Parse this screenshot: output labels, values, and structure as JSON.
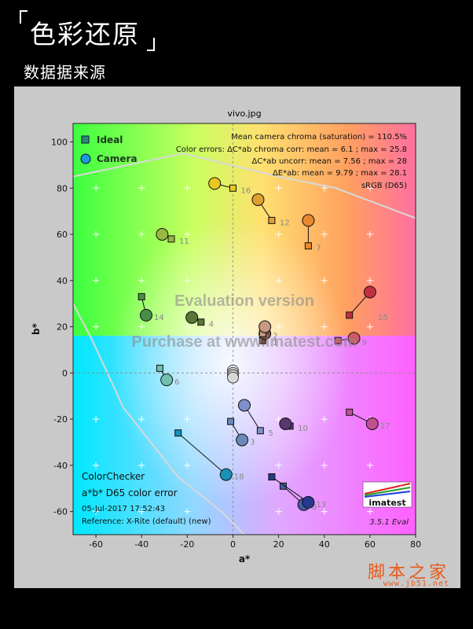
{
  "header": {
    "title": "色彩还原",
    "subtitle": "数据据来源"
  },
  "chart_data": {
    "type": "scatter",
    "title": "vivo.jpg",
    "xlabel": "a*",
    "ylabel": "b*",
    "xlim": [
      -70,
      80
    ],
    "ylim": [
      -70,
      108
    ],
    "xticks": [
      -60,
      -40,
      -20,
      0,
      20,
      40,
      60,
      80
    ],
    "yticks": [
      -60,
      -40,
      -20,
      0,
      20,
      40,
      60,
      80,
      100
    ],
    "grid": false,
    "legend": {
      "placement": "top-left",
      "ideal_label": "Ideal",
      "camera_label": "Camera"
    },
    "stats_lines": [
      "Mean camera chroma (saturation) = 110.5%",
      "Color errors: ΔC*ab chroma corr:  mean = 6.1 ;  max = 25.8",
      "ΔC*ab uncorr:  mean = 7.56 ;  max = 28",
      "ΔE*ab:  mean = 9.79 ;  max = 28.1",
      "sRGB (D65)"
    ],
    "bottom_left_info": [
      "ColorChecker",
      "a*b* D65 color error",
      "05-Jul-2017 17:52:43",
      "Reference: X-Rite (default) (new)"
    ],
    "watermark_lines": [
      "Evaluation version",
      "Purchase at www.imatest.com"
    ],
    "logo_text": "imatest",
    "version_text": "3.5.1  Eval",
    "patches": [
      {
        "id": "1",
        "ideal": [
          13,
          14
        ],
        "camera": [
          14,
          17
        ],
        "color": "#7a5040"
      },
      {
        "id": "2",
        "ideal": [
          13,
          17
        ],
        "camera": [
          14,
          20
        ],
        "color": "#c89880"
      },
      {
        "id": "3",
        "ideal": [
          -1,
          -21
        ],
        "camera": [
          4,
          -29
        ],
        "color": "#6a88b8"
      },
      {
        "id": "4",
        "ideal": [
          -14,
          22
        ],
        "camera": [
          -18,
          24
        ],
        "color": "#587838"
      },
      {
        "id": "5",
        "ideal": [
          12,
          -25
        ],
        "camera": [
          5,
          -14
        ],
        "color": "#8090c8"
      },
      {
        "id": "6",
        "ideal": [
          -32,
          2
        ],
        "camera": [
          -29,
          -3
        ],
        "color": "#70c0b0"
      },
      {
        "id": "7",
        "ideal": [
          33,
          55
        ],
        "camera": [
          33,
          66
        ],
        "color": "#e88830"
      },
      {
        "id": "8",
        "ideal": [
          22,
          -49
        ],
        "camera": [
          31,
          -57
        ],
        "color": "#4858a8"
      },
      {
        "id": "9",
        "ideal": [
          46,
          14
        ],
        "camera": [
          53,
          15
        ],
        "color": "#d05868"
      },
      {
        "id": "10",
        "ideal": [
          25,
          -23
        ],
        "camera": [
          23,
          -22
        ],
        "color": "#583870"
      },
      {
        "id": "11",
        "ideal": [
          -27,
          58
        ],
        "camera": [
          -31,
          60
        ],
        "color": "#98b840"
      },
      {
        "id": "12",
        "ideal": [
          17,
          66
        ],
        "camera": [
          11,
          75
        ],
        "color": "#e0a030"
      },
      {
        "id": "13",
        "ideal": [
          17,
          -45
        ],
        "camera": [
          33,
          -56
        ],
        "color": "#283890"
      },
      {
        "id": "14",
        "ideal": [
          -40,
          33
        ],
        "camera": [
          -38,
          25
        ],
        "color": "#489048"
      },
      {
        "id": "15",
        "ideal": [
          51,
          25
        ],
        "camera": [
          60,
          35
        ],
        "color": "#c03040"
      },
      {
        "id": "16",
        "ideal": [
          0,
          80
        ],
        "camera": [
          -8,
          82
        ],
        "color": "#e8c820"
      },
      {
        "id": "17",
        "ideal": [
          51,
          -17
        ],
        "camera": [
          61,
          -22
        ],
        "color": "#c05090"
      },
      {
        "id": "18",
        "ideal": [
          -24,
          -26
        ],
        "camera": [
          -3,
          -44
        ],
        "color": "#1890b8"
      }
    ],
    "neutral_points": [
      [
        0,
        1
      ],
      [
        0,
        0
      ],
      [
        0,
        -1
      ],
      [
        0,
        -2
      ]
    ]
  }
}
